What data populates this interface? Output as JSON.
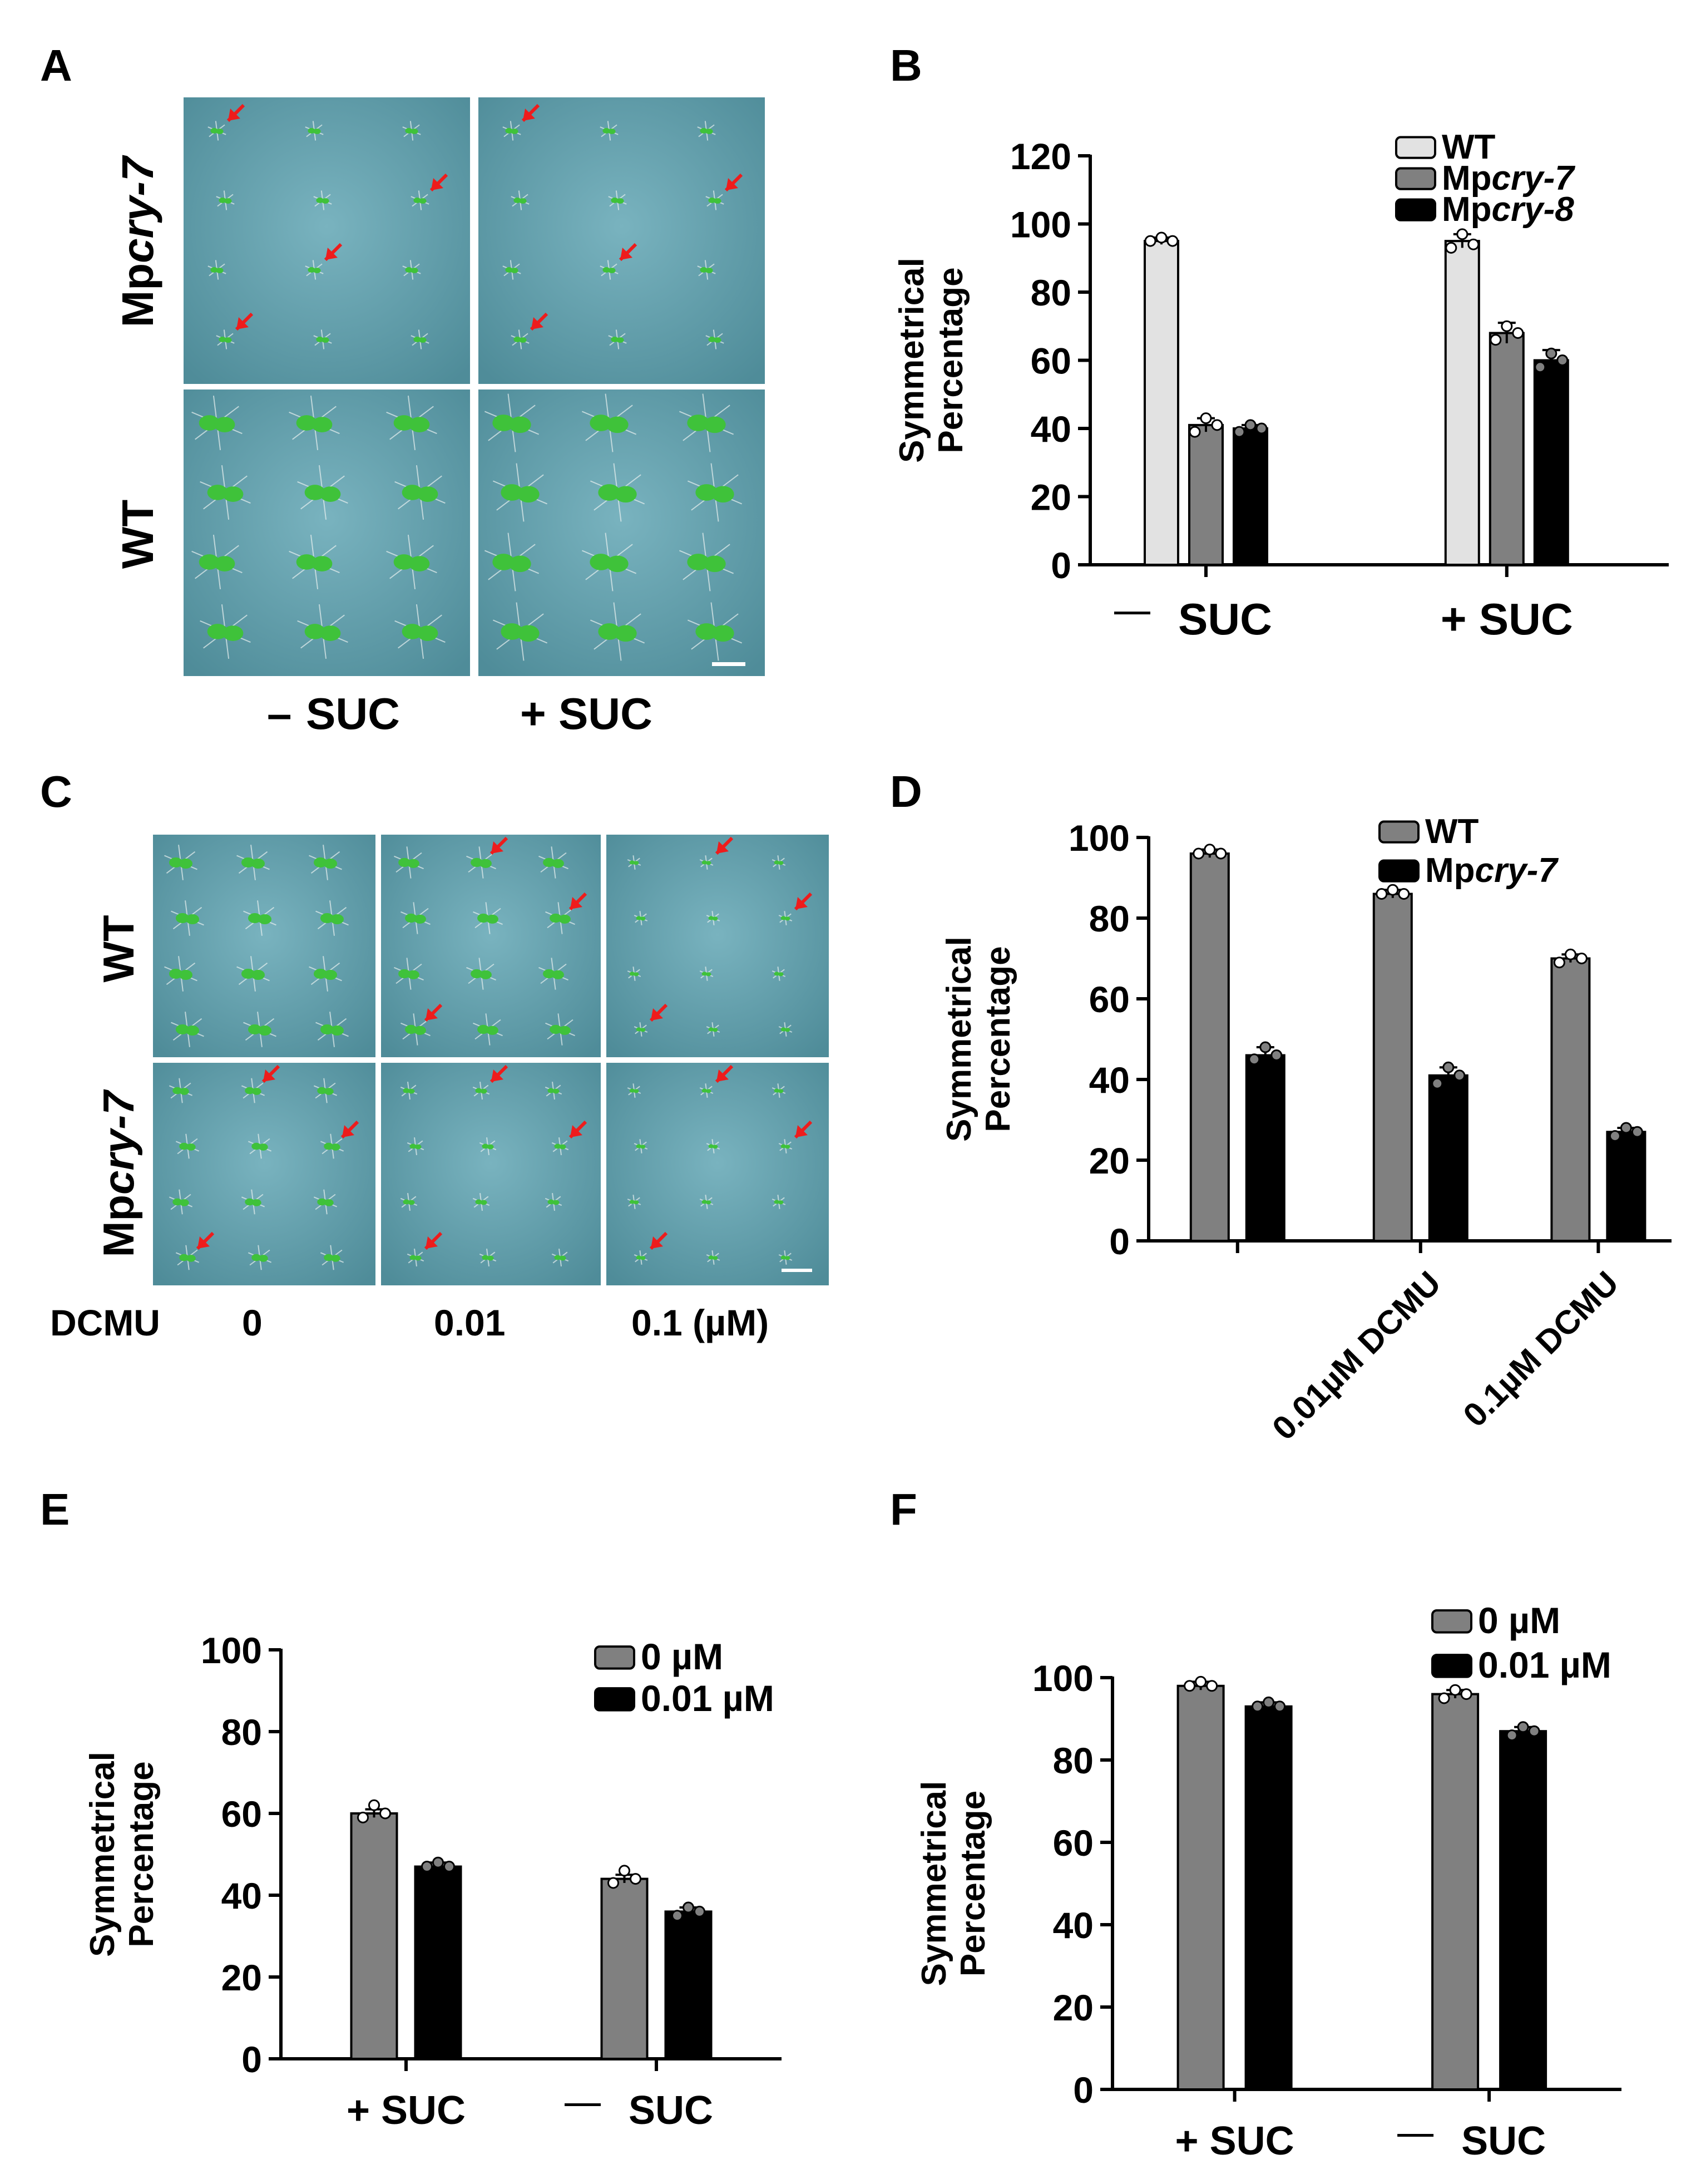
{
  "panels": {
    "A": {
      "letter": "A",
      "row_labels": [
        {
          "prefix": "Mp",
          "italic": "cry-7"
        },
        {
          "prefix": "WT",
          "italic": ""
        }
      ],
      "col_labels": [
        "SUC",
        "+ SUC"
      ],
      "minus_glyph": "–",
      "colors": {
        "plate": "#6aa4b0",
        "seedling": "#3fc23a",
        "arrow": "#ee1c1c"
      }
    },
    "C": {
      "letter": "C",
      "row_labels": [
        {
          "prefix": "WT",
          "italic": ""
        },
        {
          "prefix": "Mp",
          "italic": "cry-7"
        }
      ],
      "treatment_label": "DCMU",
      "col_labels": [
        "0",
        "0.01",
        "0.1 (µM)"
      ]
    }
  },
  "chart_data": [
    {
      "id": "B",
      "letter": "B",
      "type": "bar",
      "ylabel": [
        "Symmetrical",
        "Percentage"
      ],
      "ylim": [
        0,
        120
      ],
      "yticks": [
        0,
        20,
        40,
        60,
        80,
        100,
        120
      ],
      "categories": [
        "SUC",
        "+ SUC"
      ],
      "category_minus": [
        true,
        false
      ],
      "series": [
        {
          "name": "WT",
          "name_prefix": "WT",
          "name_italic": "",
          "color": "#e2e2e2",
          "values": [
            95,
            95
          ],
          "errors": [
            1,
            2
          ],
          "points": [
            [
              95,
              96,
              95
            ],
            [
              93,
              97,
              94
            ]
          ]
        },
        {
          "name": "Mpcry-7",
          "name_prefix": "Mp",
          "name_italic": "cry-7",
          "color": "#808080",
          "values": [
            41,
            68
          ],
          "errors": [
            2,
            3
          ],
          "points": [
            [
              39,
              43,
              41
            ],
            [
              66,
              70,
              68
            ]
          ]
        },
        {
          "name": "Mpcry-8",
          "name_prefix": "Mp",
          "name_italic": "cry-8",
          "color": "#000000",
          "values": [
            40,
            60
          ],
          "errors": [
            1,
            3
          ],
          "points": [
            [
              39,
              41,
              40
            ],
            [
              58,
              62,
              60
            ]
          ]
        }
      ],
      "legend": "top-right"
    },
    {
      "id": "D",
      "letter": "D",
      "type": "bar",
      "ylabel": [
        "Symmetrical",
        "Percentage"
      ],
      "ylim": [
        0,
        100
      ],
      "yticks": [
        0,
        20,
        40,
        60,
        80,
        100
      ],
      "categories": [
        "",
        "0.01µM DCMU",
        "0.1µM DCMU"
      ],
      "rotated_labels": true,
      "series": [
        {
          "name": "WT",
          "name_prefix": "WT",
          "name_italic": "",
          "color": "#808080",
          "values": [
            96,
            86,
            70
          ],
          "errors": [
            1,
            1,
            1
          ],
          "points": [
            [
              96,
              97,
              96
            ],
            [
              86,
              87,
              86
            ],
            [
              69,
              71,
              70
            ]
          ]
        },
        {
          "name": "Mpcry-7",
          "name_prefix": "Mp",
          "name_italic": "cry-7",
          "color": "#000000",
          "values": [
            46,
            41,
            27
          ],
          "errors": [
            2,
            2,
            1
          ],
          "points": [
            [
              45,
              48,
              46
            ],
            [
              39,
              43,
              41
            ],
            [
              26,
              28,
              27
            ]
          ]
        }
      ],
      "legend": "top-right"
    },
    {
      "id": "E",
      "letter": "E",
      "type": "bar",
      "ylabel": [
        "Symmetrical",
        "Percentage"
      ],
      "ylim": [
        0,
        100
      ],
      "yticks": [
        0,
        20,
        40,
        60,
        80,
        100
      ],
      "categories": [
        "+ SUC",
        "SUC"
      ],
      "category_minus": [
        false,
        true
      ],
      "series": [
        {
          "name": "0 µM",
          "name_prefix": "0 µM",
          "name_italic": "",
          "color": "#808080",
          "values": [
            60,
            44
          ],
          "errors": [
            1,
            1
          ],
          "points": [
            [
              59,
              62,
              60
            ],
            [
              43,
              46,
              44
            ]
          ]
        },
        {
          "name": "0.01 µM",
          "name_prefix": "0.01 µM",
          "name_italic": "",
          "color": "#000000",
          "values": [
            47,
            36
          ],
          "errors": [
            1,
            1
          ],
          "points": [
            [
              47,
              48,
              47
            ],
            [
              35,
              37,
              36
            ]
          ]
        }
      ],
      "legend": "top-right"
    },
    {
      "id": "F",
      "letter": "F",
      "type": "bar",
      "ylabel": [
        "Symmetrical",
        "Percentage"
      ],
      "ylim": [
        0,
        100
      ],
      "yticks": [
        0,
        20,
        40,
        60,
        80,
        100
      ],
      "categories": [
        "+ SUC",
        "SUC"
      ],
      "category_minus": [
        false,
        true
      ],
      "series": [
        {
          "name": "0 µM",
          "name_prefix": "0 µM",
          "name_italic": "",
          "color": "#808080",
          "values": [
            98,
            96
          ],
          "errors": [
            1,
            1
          ],
          "points": [
            [
              98,
              99,
              98
            ],
            [
              95,
              97,
              96
            ]
          ]
        },
        {
          "name": "0.01 µM",
          "name_prefix": "0.01 µM",
          "name_italic": "",
          "color": "#000000",
          "values": [
            93,
            87
          ],
          "errors": [
            1,
            1
          ],
          "points": [
            [
              93,
              94,
              93
            ],
            [
              86,
              88,
              87
            ]
          ]
        }
      ],
      "legend": "top-right"
    }
  ]
}
